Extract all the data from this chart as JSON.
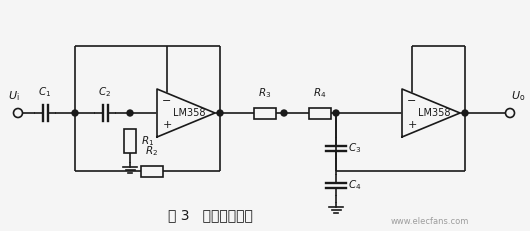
{
  "title": "图 3   带通滤波电路",
  "bg_color": "#f5f5f5",
  "line_color": "#1a1a1a",
  "fig_width": 5.3,
  "fig_height": 2.31,
  "dpi": 100,
  "watermark": "www.elecfans.com"
}
